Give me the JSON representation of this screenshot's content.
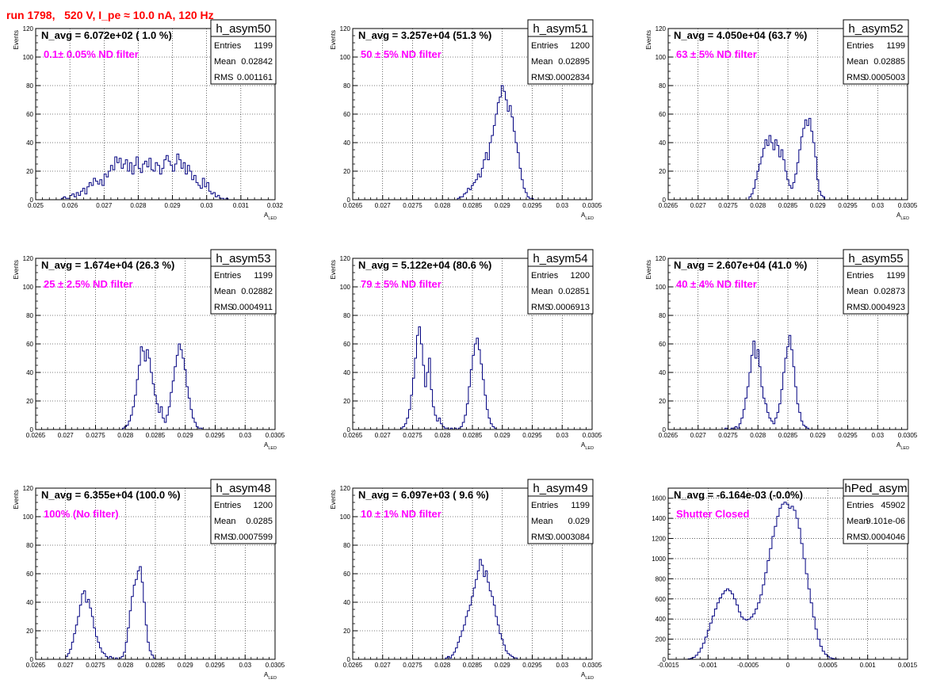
{
  "header": "run 1798,   520 V, I_pe ≈ 10.0 nA, 120 Hz",
  "colors": {
    "histogram": "#000080",
    "annotation": "#ff00ff",
    "header": "#ff0000"
  },
  "chart_data": [
    {
      "type": "histogram",
      "name": "h_asym50",
      "navg": "N_avg = 6.072e+02 ( 1.0 %)",
      "note": "0.1± 0.05% ND filter",
      "stats": [
        {
          "label": "Entries",
          "value": "1199"
        },
        {
          "label": "Mean",
          "value": "0.02842"
        },
        {
          "label": "RMS",
          "value": "0.001161"
        }
      ],
      "xlim": [
        0.025,
        0.032
      ],
      "ylim": [
        0,
        120
      ],
      "xticks": [
        "0.025",
        "0.026",
        "0.027",
        "0.028",
        "0.029",
        "0.03",
        "0.031",
        "0.032"
      ],
      "yticks": [
        "0",
        "20",
        "40",
        "60",
        "80",
        "100",
        "120"
      ],
      "xlabel": "A",
      "xlabel_sub": "LED",
      "ylabel": "Events",
      "x_start": 0.02575,
      "bin_width": 6.25e-05,
      "values": [
        1,
        2,
        1,
        1,
        3,
        4,
        2,
        5,
        3,
        6,
        8,
        4,
        9,
        12,
        10,
        15,
        13,
        11,
        14,
        10,
        18,
        16,
        20,
        24,
        21,
        30,
        26,
        29,
        22,
        25,
        28,
        20,
        26,
        18,
        24,
        30,
        22,
        19,
        25,
        27,
        23,
        29,
        21,
        20,
        26,
        24,
        18,
        22,
        28,
        31,
        27,
        24,
        20,
        25,
        32,
        28,
        22,
        26,
        18,
        24,
        20,
        14,
        17,
        12,
        10,
        8,
        15,
        9,
        12,
        6,
        4,
        5,
        2,
        3,
        1,
        1,
        0,
        1
      ]
    },
    {
      "type": "histogram",
      "name": "h_asym51",
      "navg": "N_avg = 3.257e+04 (51.3 %)",
      "note": "50 ± 5% ND filter",
      "stats": [
        {
          "label": "Entries",
          "value": "1200"
        },
        {
          "label": "Mean",
          "value": "0.02895"
        },
        {
          "label": "RMS",
          "value": "0.0002834"
        }
      ],
      "xlim": [
        0.0265,
        0.0305
      ],
      "ylim": [
        0,
        120
      ],
      "xticks": [
        "0.0265",
        "0.027",
        "0.0275",
        "0.028",
        "0.0285",
        "0.029",
        "0.0295",
        "0.03",
        "0.0305"
      ],
      "yticks": [
        "0",
        "20",
        "40",
        "60",
        "80",
        "100",
        "120"
      ],
      "xlabel": "A",
      "xlabel_sub": "LED",
      "ylabel": "Events",
      "x_start": 0.02825,
      "bin_width": 3.33e-05,
      "values": [
        1,
        2,
        2,
        4,
        5,
        8,
        7,
        10,
        12,
        14,
        18,
        16,
        22,
        28,
        33,
        28,
        40,
        45,
        52,
        60,
        68,
        72,
        80,
        76,
        70,
        62,
        66,
        58,
        48,
        40,
        33,
        22,
        14,
        8,
        5,
        2,
        1,
        1
      ]
    },
    {
      "type": "histogram",
      "name": "h_asym52",
      "navg": "N_avg = 4.050e+04 (63.7 %)",
      "note": "63 ± 5% ND filter",
      "stats": [
        {
          "label": "Entries",
          "value": "1199"
        },
        {
          "label": "Mean",
          "value": "0.02885"
        },
        {
          "label": "RMS",
          "value": "0.0005003"
        }
      ],
      "xlim": [
        0.0265,
        0.0305
      ],
      "ylim": [
        0,
        120
      ],
      "xticks": [
        "0.0265",
        "0.027",
        "0.0275",
        "0.028",
        "0.0285",
        "0.029",
        "0.0295",
        "0.03",
        "0.0305"
      ],
      "yticks": [
        "0",
        "20",
        "40",
        "60",
        "80",
        "100",
        "120"
      ],
      "xlabel": "A",
      "xlabel_sub": "LED",
      "ylabel": "Events",
      "x_start": 0.02785,
      "bin_width": 3.33e-05,
      "values": [
        2,
        4,
        8,
        14,
        20,
        25,
        30,
        36,
        42,
        38,
        45,
        40,
        35,
        42,
        38,
        30,
        35,
        28,
        20,
        14,
        10,
        8,
        12,
        18,
        26,
        35,
        44,
        50,
        56,
        52,
        57,
        48,
        40,
        30,
        14,
        6,
        3,
        2
      ]
    },
    {
      "type": "histogram",
      "name": "h_asym53",
      "navg": "N_avg = 1.674e+04 (26.3 %)",
      "note": "25 ± 2.5% ND filter",
      "stats": [
        {
          "label": "Entries",
          "value": "1199"
        },
        {
          "label": "Mean",
          "value": "0.02882"
        },
        {
          "label": "RMS",
          "value": "0.0004911"
        }
      ],
      "xlim": [
        0.0265,
        0.0305
      ],
      "ylim": [
        0,
        120
      ],
      "xticks": [
        "0.0265",
        "0.027",
        "0.0275",
        "0.028",
        "0.0285",
        "0.029",
        "0.0295",
        "0.03",
        "0.0305"
      ],
      "yticks": [
        "0",
        "20",
        "40",
        "60",
        "80",
        "100",
        "120"
      ],
      "xlabel": "A",
      "xlabel_sub": "LED",
      "ylabel": "Events",
      "x_start": 0.02795,
      "bin_width": 3.33e-05,
      "values": [
        1,
        2,
        3,
        6,
        10,
        16,
        24,
        35,
        45,
        58,
        55,
        48,
        56,
        50,
        40,
        32,
        24,
        18,
        12,
        16,
        8,
        5,
        10,
        16,
        26,
        34,
        44,
        52,
        60,
        56,
        50,
        42,
        30,
        22,
        14,
        8,
        5,
        2,
        1,
        1
      ]
    },
    {
      "type": "histogram",
      "name": "h_asym54",
      "navg": "N_avg = 5.122e+04 (80.6 %)",
      "note": "79 ± 5% ND filter",
      "stats": [
        {
          "label": "Entries",
          "value": "1200"
        },
        {
          "label": "Mean",
          "value": "0.02851"
        },
        {
          "label": "RMS",
          "value": "0.0006913"
        }
      ],
      "xlim": [
        0.0265,
        0.0305
      ],
      "ylim": [
        0,
        120
      ],
      "xticks": [
        "0.0265",
        "0.027",
        "0.0275",
        "0.028",
        "0.0285",
        "0.029",
        "0.0295",
        "0.03",
        "0.0305"
      ],
      "yticks": [
        "0",
        "20",
        "40",
        "60",
        "80",
        "100",
        "120"
      ],
      "xlabel": "A",
      "xlabel_sub": "LED",
      "ylabel": "Events",
      "x_start": 0.0273,
      "bin_width": 3.33e-05,
      "values": [
        1,
        2,
        4,
        8,
        14,
        24,
        36,
        50,
        66,
        72,
        60,
        45,
        30,
        40,
        50,
        28,
        16,
        10,
        6,
        8,
        4,
        2,
        1,
        1,
        0,
        1,
        0,
        1,
        0,
        1,
        2,
        5,
        10,
        18,
        30,
        42,
        52,
        60,
        64,
        56,
        46,
        35,
        24,
        14,
        8,
        4,
        2,
        1
      ]
    },
    {
      "type": "histogram",
      "name": "h_asym55",
      "navg": "N_avg = 2.607e+04 (41.0 %)",
      "note": "40 ± 4% ND filter",
      "stats": [
        {
          "label": "Entries",
          "value": "1199"
        },
        {
          "label": "Mean",
          "value": "0.02873"
        },
        {
          "label": "RMS",
          "value": "0.0004923"
        }
      ],
      "xlim": [
        0.0265,
        0.0305
      ],
      "ylim": [
        0,
        120
      ],
      "xticks": [
        "0.0265",
        "0.027",
        "0.0275",
        "0.028",
        "0.0285",
        "0.029",
        "0.0295",
        "0.03",
        "0.0305"
      ],
      "yticks": [
        "0",
        "20",
        "40",
        "60",
        "80",
        "100",
        "120"
      ],
      "xlabel": "A",
      "xlabel_sub": "LED",
      "ylabel": "Events",
      "x_start": 0.02745,
      "bin_width": 3.33e-05,
      "values": [
        1,
        0,
        0,
        1,
        0,
        2,
        1,
        4,
        8,
        14,
        22,
        30,
        40,
        52,
        62,
        50,
        56,
        44,
        30,
        22,
        18,
        12,
        8,
        6,
        4,
        8,
        12,
        18,
        28,
        40,
        50,
        58,
        66,
        56,
        44,
        30,
        18,
        12,
        6,
        3,
        2,
        1
      ]
    },
    {
      "type": "histogram",
      "name": "h_asym48",
      "navg": "N_avg = 6.355e+04 (100.0 %)",
      "note": "100% (No filter)",
      "stats": [
        {
          "label": "Entries",
          "value": "1200"
        },
        {
          "label": "Mean",
          "value": "0.0285"
        },
        {
          "label": "RMS",
          "value": "0.0007599"
        }
      ],
      "xlim": [
        0.0265,
        0.0305
      ],
      "ylim": [
        0,
        120
      ],
      "xticks": [
        "0.0265",
        "0.027",
        "0.0275",
        "0.028",
        "0.0285",
        "0.029",
        "0.0295",
        "0.03",
        "0.0305"
      ],
      "yticks": [
        "0",
        "20",
        "40",
        "60",
        "80",
        "100",
        "120"
      ],
      "xlabel": "A",
      "xlabel_sub": "LED",
      "ylabel": "Events",
      "x_start": 0.027,
      "bin_width": 3.33e-05,
      "values": [
        2,
        4,
        7,
        12,
        18,
        24,
        30,
        38,
        46,
        48,
        40,
        42,
        36,
        30,
        22,
        16,
        12,
        8,
        5,
        4,
        2,
        1,
        2,
        1,
        0,
        1,
        0,
        1,
        2,
        5,
        12,
        22,
        34,
        44,
        52,
        56,
        62,
        65,
        54,
        40,
        24,
        12,
        6,
        3,
        1
      ]
    },
    {
      "type": "histogram",
      "name": "h_asym49",
      "navg": "N_avg = 6.097e+03 ( 9.6 %)",
      "note": "10 ± 1% ND filter",
      "stats": [
        {
          "label": "Entries",
          "value": "1199"
        },
        {
          "label": "Mean",
          "value": "0.029"
        },
        {
          "label": "RMS",
          "value": "0.0003084"
        }
      ],
      "xlim": [
        0.0265,
        0.0305
      ],
      "ylim": [
        0,
        120
      ],
      "xticks": [
        "0.0265",
        "0.027",
        "0.0275",
        "0.028",
        "0.0285",
        "0.029",
        "0.0295",
        "0.03",
        "0.0305"
      ],
      "yticks": [
        "0",
        "20",
        "40",
        "60",
        "80",
        "100",
        "120"
      ],
      "xlabel": "A",
      "xlabel_sub": "LED",
      "ylabel": "Events",
      "x_start": 0.02805,
      "bin_width": 3.33e-05,
      "values": [
        1,
        2,
        1,
        3,
        5,
        8,
        12,
        16,
        20,
        24,
        30,
        34,
        38,
        44,
        50,
        56,
        62,
        70,
        66,
        58,
        62,
        54,
        48,
        44,
        38,
        30,
        24,
        18,
        14,
        10,
        6,
        4,
        3,
        2,
        1,
        1
      ]
    },
    {
      "type": "histogram",
      "name": "hPed_asym",
      "navg": "N_avg = -6.164e-03 (-0.0%)",
      "note": "Shutter Closed",
      "stats": [
        {
          "label": "Entries",
          "value": "45902"
        },
        {
          "label": "Mean",
          "value": "9.101e-06"
        },
        {
          "label": "RMS",
          "value": "0.0004046"
        }
      ],
      "xlim": [
        -0.0015,
        0.0015
      ],
      "ylim": [
        0,
        1700
      ],
      "xticks": [
        "-0.0015",
        "-0.001",
        "-0.0005",
        "0",
        "0.0005",
        "0.001",
        "0.0015"
      ],
      "yticks": [
        "0",
        "200",
        "400",
        "600",
        "800",
        "1000",
        "1200",
        "1400",
        "1600"
      ],
      "xlabel": "",
      "xlabel_sub": "",
      "ylabel": "",
      "x_start": -0.00125,
      "bin_width": 3e-05,
      "values": [
        5,
        10,
        20,
        40,
        70,
        110,
        160,
        220,
        290,
        360,
        430,
        500,
        560,
        610,
        650,
        680,
        700,
        680,
        650,
        600,
        540,
        470,
        420,
        400,
        390,
        400,
        420,
        450,
        500,
        560,
        640,
        740,
        860,
        980,
        1100,
        1220,
        1320,
        1420,
        1500,
        1540,
        1560,
        1540,
        1500,
        1520,
        1480,
        1400,
        1300,
        1150,
        1000,
        850,
        700,
        560,
        420,
        300,
        200,
        130,
        80,
        50,
        30,
        15,
        8,
        4,
        2
      ]
    }
  ]
}
